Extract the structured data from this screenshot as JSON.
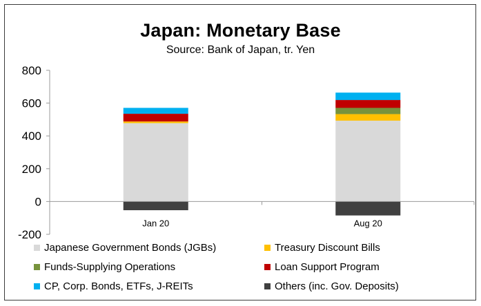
{
  "chart_data": {
    "type": "bar",
    "stacked": true,
    "title": "Japan: Monetary Base",
    "subtitle": "Source: Bank of Japan, tr. Yen",
    "categories": [
      "Jan 20",
      "Aug 20"
    ],
    "ylim": [
      -200,
      800
    ],
    "yticks": [
      -200,
      0,
      200,
      400,
      600,
      800
    ],
    "grid": false,
    "legend_position": "bottom",
    "series": [
      {
        "name": "Japanese Government Bonds (JGBs)",
        "color": "#d9d9d9",
        "values": [
          478,
          493
        ]
      },
      {
        "name": "Treasury Discount Bills",
        "color": "#ffc000",
        "values": [
          10,
          40
        ]
      },
      {
        "name": "Funds-Supplying Operations",
        "color": "#77933c",
        "values": [
          0,
          38
        ]
      },
      {
        "name": "Loan Support Program",
        "color": "#c00000",
        "values": [
          47,
          48
        ]
      },
      {
        "name": "CP, Corp. Bonds, ETFs, J-REITs",
        "color": "#00b0f0",
        "values": [
          36,
          45
        ]
      },
      {
        "name": "Others (inc. Gov. Deposits)",
        "color": "#404040",
        "values": [
          -53,
          -85
        ]
      }
    ]
  }
}
